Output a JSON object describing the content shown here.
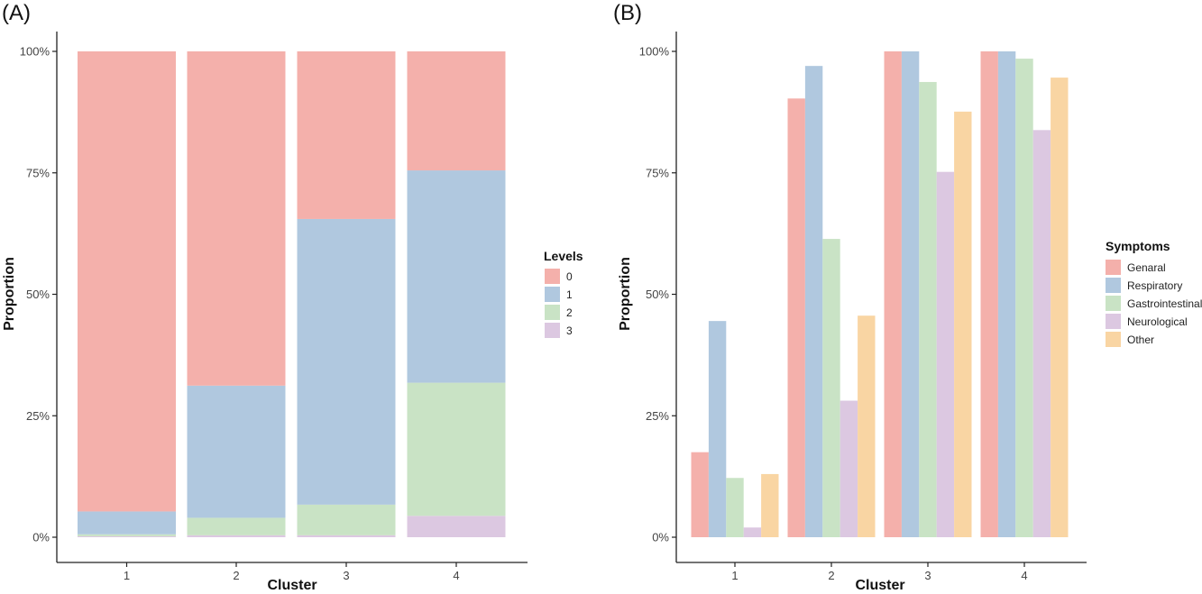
{
  "chart_data": [
    {
      "panel_label": "(A)",
      "type": "bar",
      "stacked": true,
      "categories": [
        "1",
        "2",
        "3",
        "4"
      ],
      "xlabel": "Cluster",
      "ylabel": "Proportion",
      "ylim": [
        0,
        1
      ],
      "yticks": [
        "0%",
        "25%",
        "50%",
        "75%",
        "100%"
      ],
      "legend": {
        "title": "Levels",
        "position": "right"
      },
      "series": [
        {
          "name": "0",
          "color": "#f4b0ab",
          "values": [
            0.947,
            0.688,
            0.345,
            0.245
          ]
        },
        {
          "name": "1",
          "color": "#b0c8df",
          "values": [
            0.047,
            0.272,
            0.588,
            0.437
          ]
        },
        {
          "name": "2",
          "color": "#c9e3c5",
          "values": [
            0.004,
            0.036,
            0.063,
            0.274
          ]
        },
        {
          "name": "3",
          "color": "#dcc8e1",
          "values": [
            0.002,
            0.004,
            0.004,
            0.044
          ]
        }
      ]
    },
    {
      "panel_label": "(B)",
      "type": "bar",
      "stacked": false,
      "categories": [
        "1",
        "2",
        "3",
        "4"
      ],
      "xlabel": "Cluster",
      "ylabel": "Proportion",
      "ylim": [
        0,
        1
      ],
      "yticks": [
        "0%",
        "25%",
        "50%",
        "75%",
        "100%"
      ],
      "legend": {
        "title": "Symptoms",
        "position": "right"
      },
      "series": [
        {
          "name": "Genaral",
          "color": "#f4b0ab",
          "values": [
            0.175,
            0.903,
            1.0,
            1.0
          ]
        },
        {
          "name": "Respiratory",
          "color": "#b0c8df",
          "values": [
            0.445,
            0.97,
            1.0,
            1.0
          ]
        },
        {
          "name": "Gastrointestinal",
          "color": "#c9e3c5",
          "values": [
            0.122,
            0.614,
            0.937,
            0.985
          ]
        },
        {
          "name": "Neurological",
          "color": "#dcc8e1",
          "values": [
            0.02,
            0.281,
            0.752,
            0.838
          ]
        },
        {
          "name": "Other",
          "color": "#f9d5a3",
          "values": [
            0.13,
            0.456,
            0.876,
            0.946
          ]
        }
      ]
    }
  ]
}
